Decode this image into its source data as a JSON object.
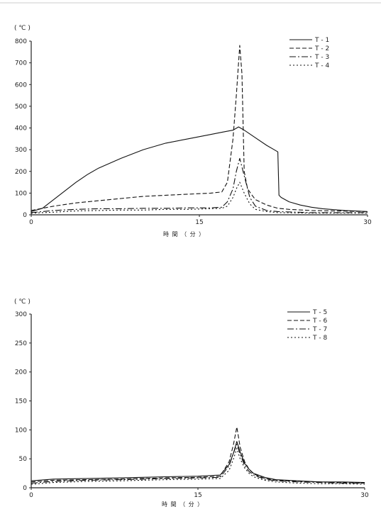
{
  "chart_data": [
    {
      "type": "line",
      "unit_label": "( ℃ )",
      "xlabel": "時 間 （ 分 ）",
      "xlim": [
        0,
        30
      ],
      "ylim": [
        0,
        800
      ],
      "x_ticks": [
        "0",
        "15",
        "30"
      ],
      "y_ticks": [
        "0",
        "100",
        "200",
        "300",
        "400",
        "500",
        "600",
        "700",
        "800"
      ],
      "legend_position": "top-right",
      "series": [
        {
          "name": "T - 1",
          "dash": "none",
          "x": [
            0,
            1,
            2,
            3,
            4,
            5,
            6,
            8,
            10,
            12,
            14,
            16,
            17,
            18,
            18.5,
            19,
            20,
            21,
            22,
            22.1,
            22.3,
            23,
            24,
            25,
            26,
            28,
            30
          ],
          "y": [
            15,
            30,
            70,
            110,
            150,
            185,
            215,
            260,
            300,
            330,
            350,
            370,
            380,
            390,
            405,
            390,
            355,
            320,
            290,
            90,
            80,
            60,
            45,
            35,
            28,
            20,
            15
          ]
        },
        {
          "name": "T - 2",
          "dash": "6,3",
          "x": [
            0,
            1,
            2,
            4,
            6,
            8,
            10,
            12,
            14,
            16,
            17,
            17.5,
            18,
            18.3,
            18.6,
            18.8,
            19,
            19.3,
            19.7,
            20,
            21,
            22,
            23,
            25,
            30
          ],
          "y": [
            20,
            30,
            40,
            55,
            65,
            75,
            85,
            90,
            95,
            100,
            105,
            150,
            350,
            550,
            780,
            650,
            200,
            120,
            90,
            70,
            45,
            30,
            25,
            20,
            15
          ]
        },
        {
          "name": "T - 3",
          "dash": "9,3,2,3",
          "x": [
            0,
            2,
            4,
            6,
            8,
            10,
            12,
            14,
            16,
            17,
            17.5,
            18,
            18.3,
            18.6,
            19,
            19.5,
            20,
            21,
            22,
            25,
            30
          ],
          "y": [
            10,
            20,
            25,
            28,
            28,
            30,
            30,
            32,
            32,
            35,
            60,
            120,
            200,
            260,
            180,
            80,
            40,
            20,
            15,
            10,
            10
          ]
        },
        {
          "name": "T - 4",
          "dash": "2,3",
          "x": [
            0,
            2,
            4,
            6,
            8,
            10,
            12,
            14,
            16,
            17,
            17.5,
            18,
            18.3,
            18.6,
            19,
            19.5,
            20,
            21,
            22,
            25,
            30
          ],
          "y": [
            8,
            12,
            18,
            20,
            22,
            22,
            25,
            25,
            28,
            30,
            40,
            80,
            120,
            150,
            100,
            50,
            25,
            15,
            10,
            8,
            8
          ]
        }
      ]
    },
    {
      "type": "line",
      "unit_label": "( ℃ )",
      "xlabel": "時 間 （ 分 ）",
      "xlim": [
        0,
        30
      ],
      "ylim": [
        0,
        300
      ],
      "x_ticks": [
        "0",
        "15",
        "30"
      ],
      "y_ticks": [
        "0",
        "50",
        "100",
        "150",
        "200",
        "250",
        "300"
      ],
      "legend_position": "top-right",
      "series": [
        {
          "name": "T - 5",
          "dash": "none",
          "x": [
            0,
            2,
            5,
            8,
            10,
            12,
            15,
            17,
            17.8,
            18.2,
            18.5,
            18.8,
            19.2,
            19.6,
            20,
            21,
            22,
            24,
            26,
            28,
            30
          ],
          "y": [
            12,
            15,
            16,
            17,
            18,
            19,
            20,
            22,
            40,
            60,
            80,
            62,
            42,
            32,
            25,
            18,
            14,
            12,
            10,
            10,
            9
          ]
        },
        {
          "name": "T - 6",
          "dash": "6,3",
          "x": [
            0,
            2,
            5,
            8,
            10,
            12,
            15,
            17,
            17.8,
            18.2,
            18.5,
            18.8,
            19.2,
            19.6,
            20,
            21,
            22,
            24,
            26,
            28,
            30
          ],
          "y": [
            10,
            13,
            14,
            15,
            16,
            17,
            18,
            20,
            45,
            75,
            105,
            70,
            45,
            32,
            24,
            16,
            13,
            11,
            10,
            9,
            8
          ]
        },
        {
          "name": "T - 7",
          "dash": "9,3,2,3",
          "x": [
            0,
            2,
            5,
            8,
            10,
            12,
            15,
            17,
            17.8,
            18.2,
            18.5,
            18.8,
            19.2,
            19.6,
            20,
            21,
            22,
            24,
            26,
            28,
            30
          ],
          "y": [
            8,
            11,
            13,
            14,
            15,
            16,
            17,
            18,
            38,
            60,
            75,
            58,
            38,
            28,
            22,
            15,
            12,
            10,
            9,
            8,
            8
          ]
        },
        {
          "name": "T - 8",
          "dash": "2,3",
          "x": [
            0,
            2,
            5,
            8,
            10,
            12,
            15,
            17,
            17.8,
            18.2,
            18.5,
            18.8,
            19.2,
            19.6,
            20,
            21,
            22,
            24,
            26,
            28,
            30
          ],
          "y": [
            6,
            9,
            11,
            12,
            13,
            14,
            15,
            16,
            30,
            50,
            68,
            50,
            34,
            25,
            19,
            13,
            10,
            8,
            7,
            7,
            6
          ]
        }
      ]
    }
  ]
}
